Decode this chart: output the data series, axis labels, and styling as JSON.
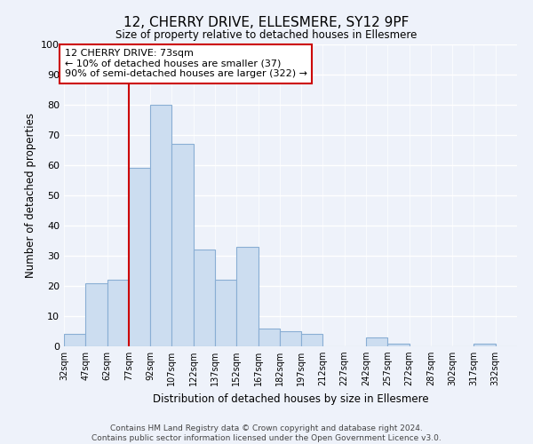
{
  "title": "12, CHERRY DRIVE, ELLESMERE, SY12 9PF",
  "subtitle": "Size of property relative to detached houses in Ellesmere",
  "xlabel": "Distribution of detached houses by size in Ellesmere",
  "ylabel": "Number of detached properties",
  "bar_color": "#ccddf0",
  "bar_edge_color": "#89aed4",
  "background_color": "#eef2fa",
  "grid_color": "#ffffff",
  "annotation_box_color": "#ffffff",
  "annotation_border_color": "#cc0000",
  "vline_color": "#cc0000",
  "footer": "Contains HM Land Registry data © Crown copyright and database right 2024.\nContains public sector information licensed under the Open Government Licence v3.0.",
  "annotation_text_line1": "12 CHERRY DRIVE: 73sqm",
  "annotation_text_line2": "← 10% of detached houses are smaller (37)",
  "annotation_text_line3": "90% of semi-detached houses are larger (322) →",
  "property_size": 73,
  "vline_position": 77,
  "bin_edges": [
    32,
    47,
    62,
    77,
    92,
    107,
    122,
    137,
    152,
    167,
    182,
    197,
    212,
    227,
    242,
    257,
    272,
    287,
    302,
    317,
    332,
    347
  ],
  "bin_counts": [
    4,
    21,
    22,
    59,
    80,
    67,
    32,
    22,
    33,
    6,
    5,
    4,
    0,
    0,
    3,
    1,
    0,
    0,
    0,
    1,
    0
  ],
  "ylim": [
    0,
    100
  ],
  "yticks": [
    0,
    10,
    20,
    30,
    40,
    50,
    60,
    70,
    80,
    90,
    100
  ]
}
